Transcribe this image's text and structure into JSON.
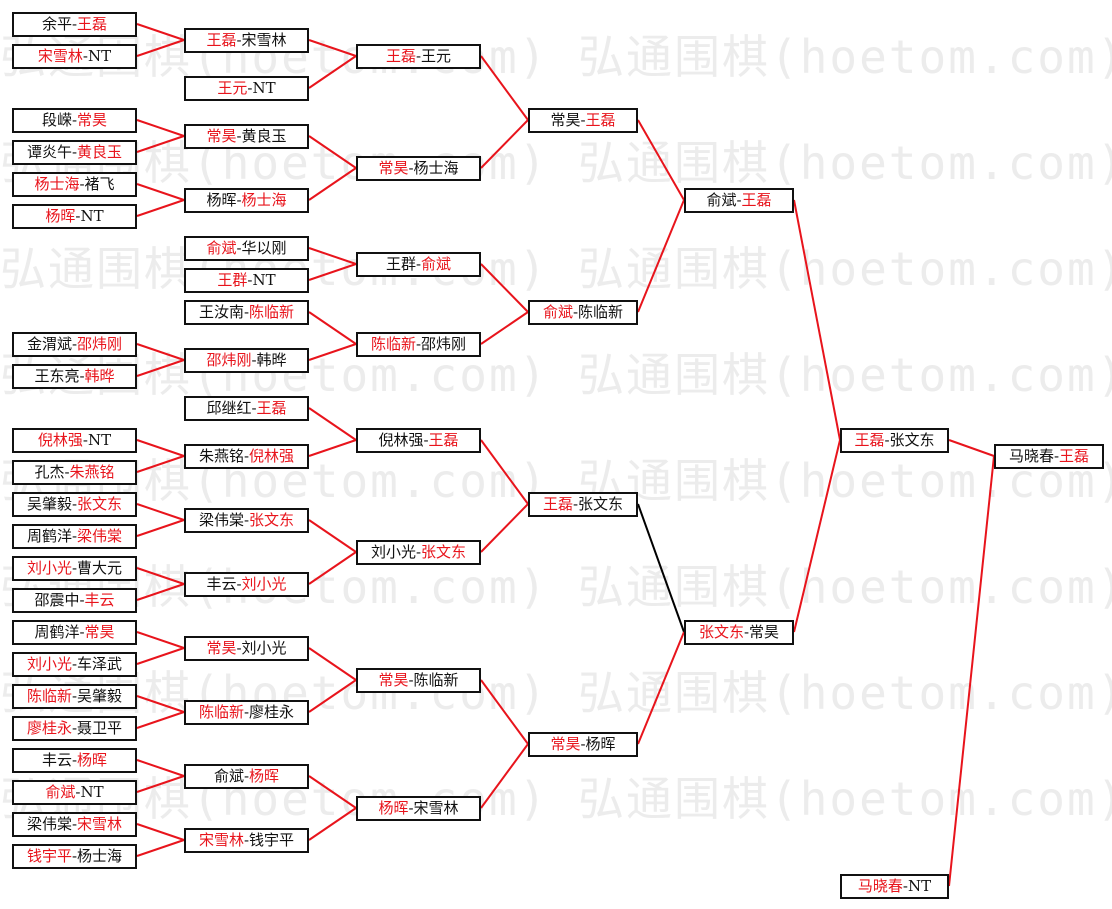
{
  "watermark": "弘通围棋(hoetom.com) 弘通围棋(hoetom.com)",
  "colors": {
    "winner_text": "#e8141c",
    "line_red": "#e8141c",
    "line_black": "#000000"
  },
  "rounds": [
    [
      [
        "余平",
        "王磊",
        1
      ],
      [
        "宋雪林",
        "NT",
        0
      ],
      [
        "段嵘",
        "常昊",
        1
      ],
      [
        "谭炎午",
        "黄良玉",
        1
      ],
      [
        "杨士海",
        "褚飞",
        0
      ],
      [
        "杨晖",
        "NT",
        0
      ],
      [
        "金渭斌",
        "邵炜刚",
        1
      ],
      [
        "王东亮",
        "韩晔",
        1
      ],
      [
        "倪林强",
        "NT",
        0
      ],
      [
        "孔杰",
        "朱燕铭",
        1
      ],
      [
        "吴肇毅",
        "张文东",
        1
      ],
      [
        "周鹤洋",
        "梁伟棠",
        1
      ],
      [
        "刘小光",
        "曹大元",
        0
      ],
      [
        "邵震中",
        "丰云",
        1
      ],
      [
        "周鹤洋",
        "常昊",
        1
      ],
      [
        "刘小光",
        "车泽武",
        0
      ],
      [
        "陈临新",
        "吴肇毅",
        0
      ],
      [
        "廖桂永",
        "聂卫平",
        0
      ],
      [
        "丰云",
        "杨晖",
        1
      ],
      [
        "俞斌",
        "NT",
        0
      ],
      [
        "梁伟棠",
        "宋雪林",
        1
      ],
      [
        "钱宇平",
        "杨士海",
        0
      ]
    ],
    [
      [
        "王磊",
        "宋雪林",
        0
      ],
      [
        "王元",
        "NT",
        0
      ],
      [
        "常昊",
        "黄良玉",
        0
      ],
      [
        "杨晖",
        "杨士海",
        1
      ],
      [
        "俞斌",
        "华以刚",
        0
      ],
      [
        "王群",
        "NT",
        0
      ],
      [
        "王汝南",
        "陈临新",
        1
      ],
      [
        "邵炜刚",
        "韩晔",
        0
      ],
      [
        "邱继红",
        "王磊",
        1
      ],
      [
        "朱燕铭",
        "倪林强",
        1
      ],
      [
        "梁伟棠",
        "张文东",
        1
      ],
      [
        "丰云",
        "刘小光",
        1
      ],
      [
        "常昊",
        "刘小光",
        0
      ],
      [
        "陈临新",
        "廖桂永",
        0
      ],
      [
        "俞斌",
        "杨晖",
        1
      ],
      [
        "宋雪林",
        "钱宇平",
        0
      ]
    ],
    [
      [
        "王磊",
        "王元",
        0
      ],
      [
        "常昊",
        "杨士海",
        0
      ],
      [
        "王群",
        "俞斌",
        1
      ],
      [
        "陈临新",
        "邵炜刚",
        0
      ],
      [
        "倪林强",
        "王磊",
        1
      ],
      [
        "刘小光",
        "张文东",
        1
      ],
      [
        "常昊",
        "陈临新",
        0
      ],
      [
        "杨晖",
        "宋雪林",
        0
      ]
    ],
    [
      [
        "常昊",
        "王磊",
        1
      ],
      [
        "俞斌",
        "陈临新",
        0
      ],
      [
        "王磊",
        "张文东",
        0
      ],
      [
        "常昊",
        "杨晖",
        0
      ]
    ],
    [
      [
        "俞斌",
        "王磊",
        1
      ],
      [
        "张文东",
        "常昊",
        0
      ]
    ],
    [
      [
        "王磊",
        "张文东",
        0
      ],
      [
        "马晓春",
        "NT",
        0
      ]
    ],
    [
      [
        "马晓春",
        "王磊",
        1
      ]
    ]
  ]
}
